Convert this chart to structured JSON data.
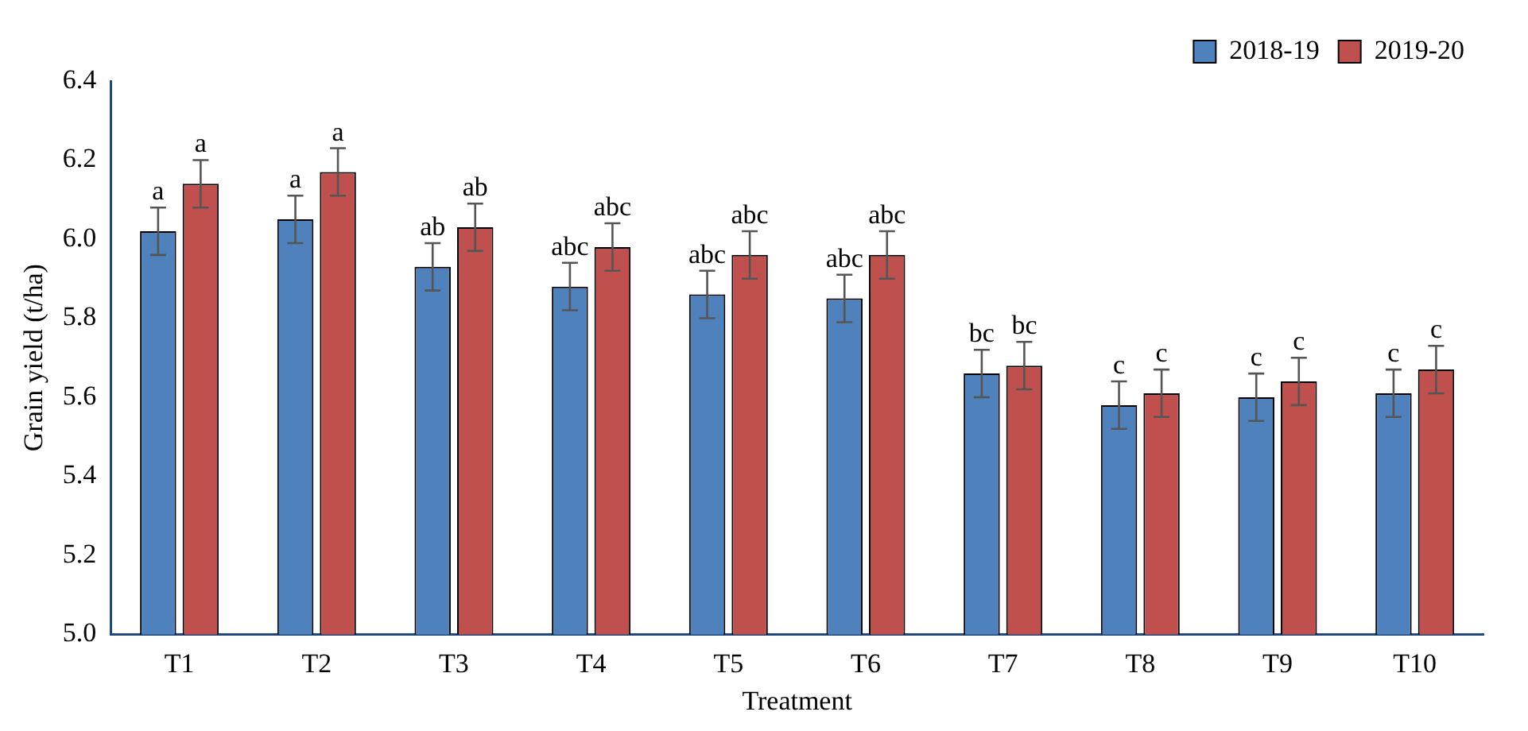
{
  "chart_data": {
    "type": "bar",
    "xlabel": "Treatment",
    "ylabel": "Grain yield (t/ha)",
    "categories": [
      "T1",
      "T2",
      "T3",
      "T4",
      "T5",
      "T6",
      "T7",
      "T8",
      "T9",
      "T10"
    ],
    "series": [
      {
        "name": "2018-19",
        "color": "#4f81bd",
        "values": [
          6.02,
          6.05,
          5.93,
          5.88,
          5.86,
          5.85,
          5.66,
          5.58,
          5.6,
          5.61
        ],
        "errors": [
          0.06,
          0.06,
          0.06,
          0.06,
          0.06,
          0.06,
          0.06,
          0.06,
          0.06,
          0.06
        ],
        "value_labels": [
          "a",
          "a",
          "ab",
          "abc",
          "abc",
          "abc",
          "bc",
          "c",
          "c",
          "c"
        ]
      },
      {
        "name": "2019-20",
        "color": "#c0504d",
        "values": [
          6.14,
          6.17,
          6.03,
          5.98,
          5.96,
          5.96,
          5.68,
          5.61,
          5.64,
          5.67
        ],
        "errors": [
          0.06,
          0.06,
          0.06,
          0.06,
          0.06,
          0.06,
          0.06,
          0.06,
          0.06,
          0.06
        ],
        "value_labels": [
          "a",
          "a",
          "ab",
          "abc",
          "abc",
          "abc",
          "bc",
          "c",
          "c",
          "c"
        ]
      }
    ],
    "ylim": [
      5.0,
      6.4
    ],
    "yticks": [
      {
        "value": 5.0,
        "label": "5.0"
      },
      {
        "value": 5.2,
        "label": "5.2"
      },
      {
        "value": 5.4,
        "label": "5.4"
      },
      {
        "value": 5.6,
        "label": "5.6"
      },
      {
        "value": 5.8,
        "label": "5.8"
      },
      {
        "value": 6.0,
        "label": "6.0"
      },
      {
        "value": 6.2,
        "label": "6.2"
      },
      {
        "value": 6.4,
        "label": "6.4"
      }
    ],
    "grid": false,
    "legend": "top"
  }
}
